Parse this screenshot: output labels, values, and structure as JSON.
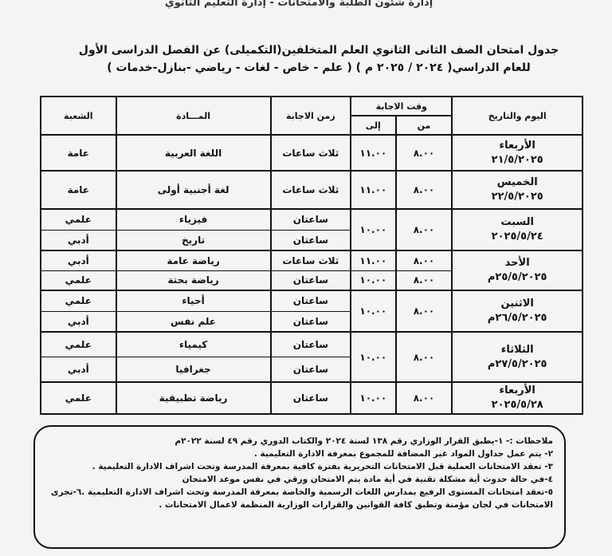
{
  "header_top": "إدارة شئون الطلبة والامتحانات - إدارة التعليم الثانوي",
  "title_line1": "جدول امتحان الصف الثانى الثانوي العلم المتخلفين(التكميلى) عن الفصل الدراسى الأول",
  "title_line2": "للعام الدراسي( ٢٠٢٤ / ٢٠٢٥ م ) ( علم - خاص - لغات - رياضي -بنازل-خدمات )",
  "columns": {
    "day_date": "اليوم والتاريخ",
    "answer_time": "وقت الاجابة",
    "from": "من",
    "to": "إلى",
    "duration": "زمن الاجابة",
    "subject": "المـــادة",
    "branch": "الشعبة"
  },
  "rows": [
    {
      "day": "الأربعاء",
      "date": "٢١/٥/٢٠٢٥",
      "from": [
        "٨.٠٠"
      ],
      "to": [
        "١١.٠٠"
      ],
      "duration": [
        "ثلاث ساعات"
      ],
      "subject": [
        "اللغة العربية"
      ],
      "branch": [
        "عامة"
      ]
    },
    {
      "day": "الخميس",
      "date": "٢٢/٥/٢٠٢٥",
      "from": [
        "٨.٠٠"
      ],
      "to": [
        "١١.٠٠"
      ],
      "duration": [
        "ثلاث ساعات"
      ],
      "subject": [
        "لغة أجنبية أولى"
      ],
      "branch": [
        "عامة"
      ]
    },
    {
      "day": "السبت",
      "date": "٢٠٢٥/٥/٢٤",
      "from": [
        "٨.٠٠"
      ],
      "to": [
        "١٠.٠٠"
      ],
      "duration": [
        "ساعتان",
        "ساعتان"
      ],
      "subject": [
        "فيزياء",
        "تاريخ"
      ],
      "branch": [
        "علمي",
        "أدبي"
      ]
    },
    {
      "day": "الأحد",
      "date": "٢٥/٥/٢٠٢٥م",
      "from": [
        "٨.٠٠",
        "٨.٠٠"
      ],
      "to": [
        "١١.٠٠",
        "١٠.٠٠"
      ],
      "duration": [
        "ثلاث ساعات",
        "ساعتان"
      ],
      "subject": [
        "رياضة عامة",
        "رياضة بحتة"
      ],
      "branch": [
        "أدبي",
        "علمي"
      ]
    },
    {
      "day": "الاثنين",
      "date": "٢٦/٥/٢٠٢٥م",
      "from": [
        "٨.٠٠"
      ],
      "to": [
        "١٠.٠٠"
      ],
      "duration": [
        "ساعتان",
        "ساعتان"
      ],
      "subject": [
        "أحياء",
        "علم نفس"
      ],
      "branch": [
        "علمي",
        "أدبي"
      ]
    },
    {
      "day": "الثلاثاء",
      "date": "٢٧/٥/٢٠٢٥م",
      "from": [
        "٨.٠٠"
      ],
      "to": [
        "١٠.٠٠"
      ],
      "duration": [
        "ساعتان",
        "ساعتان"
      ],
      "subject": [
        "كيمياء",
        "جغرافيا"
      ],
      "branch": [
        "علمي",
        "أدبي"
      ]
    },
    {
      "day": "الأربعاء",
      "date": "٢٠٢٥/٥/٢٨",
      "from": [
        "٨.٠٠"
      ],
      "to": [
        "١٠.٠٠"
      ],
      "duration": [
        "ساعتان"
      ],
      "subject": [
        "رياضة تطبيقية"
      ],
      "branch": [
        "علمي"
      ]
    }
  ],
  "notes": [
    "ملاحظات :- ١-يطبق القرار الوزاري رقم ١٣٨ لسنة ٢٠٢٤ والكتاب الدوري رقم ٤٩ لسنة ٢٠٢٢م",
    "٢- يتم عمل جداول المواد غير المضافة للمجموع بمعرفة الادارة التعليمية .",
    "٣- تعقد الامتحانات العملية قبل الامتحانات التحريرية بفترة كافية بمعرفة المدرسة وتحت اشراف الادارة التعليمية .",
    "٤-في حالة حدوث أية مشكلة تقنية في أية مادة يتم الامتحان ورقي في نفس موعد الامتحان",
    "٥-تعقد امتحانات المستوى الرفيع بمدارس اللغات الرسمية والخاصة بمعرفة المدرسة وتحت اشراف الادارة التعليمية .٦-تجرى الامتحانات في لجان مؤمنة وتطبق كافة القوانين والقرارات الوزارية المنظمة لاعمال الامتحانات ."
  ]
}
